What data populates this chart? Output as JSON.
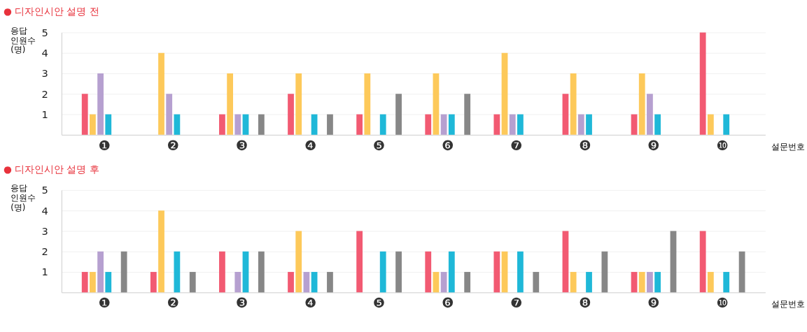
{
  "chart_data": [
    {
      "type": "bar",
      "title": "● 디자인시안 설명 전",
      "ylabel": "응답\n인원수\n(명)",
      "xlabel": "설문번호",
      "categories": [
        "❶",
        "❷",
        "❸",
        "❹",
        "❺",
        "❻",
        "❼",
        "❽",
        "❾",
        "❿"
      ],
      "ylim": [
        0,
        5
      ],
      "yticks": [
        1,
        2,
        3,
        4,
        5
      ],
      "grid": "y",
      "series": [
        {
          "color": "#f25a72",
          "values": [
            2,
            0,
            1,
            2,
            1,
            1,
            1,
            2,
            1,
            5
          ]
        },
        {
          "color": "#fdc95a",
          "values": [
            1,
            4,
            3,
            3,
            3,
            3,
            4,
            3,
            3,
            1
          ]
        },
        {
          "color": "#b6a0d0",
          "values": [
            3,
            2,
            1,
            0,
            0,
            1,
            1,
            1,
            2,
            0
          ]
        },
        {
          "color": "#1fb8d8",
          "values": [
            1,
            1,
            1,
            1,
            1,
            1,
            1,
            1,
            1,
            1
          ]
        },
        {
          "color": "#a0506a",
          "values": [
            0,
            0,
            0,
            0,
            0,
            0,
            0,
            0,
            0,
            0
          ]
        },
        {
          "color": "#878787",
          "values": [
            0,
            0,
            1,
            1,
            2,
            2,
            0,
            0,
            0,
            0
          ]
        }
      ]
    },
    {
      "type": "bar",
      "title": "● 디자인시안 설명 후",
      "ylabel": "응답\n인원수\n(명)",
      "xlabel": "설문번호",
      "categories": [
        "❶",
        "❷",
        "❸",
        "❹",
        "❺",
        "❻",
        "❼",
        "❽",
        "❾",
        "❿"
      ],
      "ylim": [
        0,
        5
      ],
      "yticks": [
        1,
        2,
        3,
        4,
        5
      ],
      "grid": "y",
      "series": [
        {
          "color": "#f25a72",
          "values": [
            1,
            1,
            2,
            1,
            3,
            2,
            2,
            3,
            1,
            3
          ]
        },
        {
          "color": "#fdc95a",
          "values": [
            1,
            4,
            0,
            3,
            0,
            1,
            2,
            1,
            1,
            1
          ]
        },
        {
          "color": "#b6a0d0",
          "values": [
            2,
            0,
            1,
            1,
            0,
            1,
            0,
            0,
            1,
            0
          ]
        },
        {
          "color": "#1fb8d8",
          "values": [
            1,
            2,
            2,
            1,
            2,
            2,
            2,
            1,
            1,
            1
          ]
        },
        {
          "color": "#a0506a",
          "values": [
            0,
            0,
            0,
            0,
            0,
            0,
            0,
            0,
            0,
            0
          ]
        },
        {
          "color": "#878787",
          "values": [
            2,
            1,
            2,
            1,
            2,
            1,
            1,
            2,
            3,
            2
          ]
        }
      ]
    }
  ]
}
